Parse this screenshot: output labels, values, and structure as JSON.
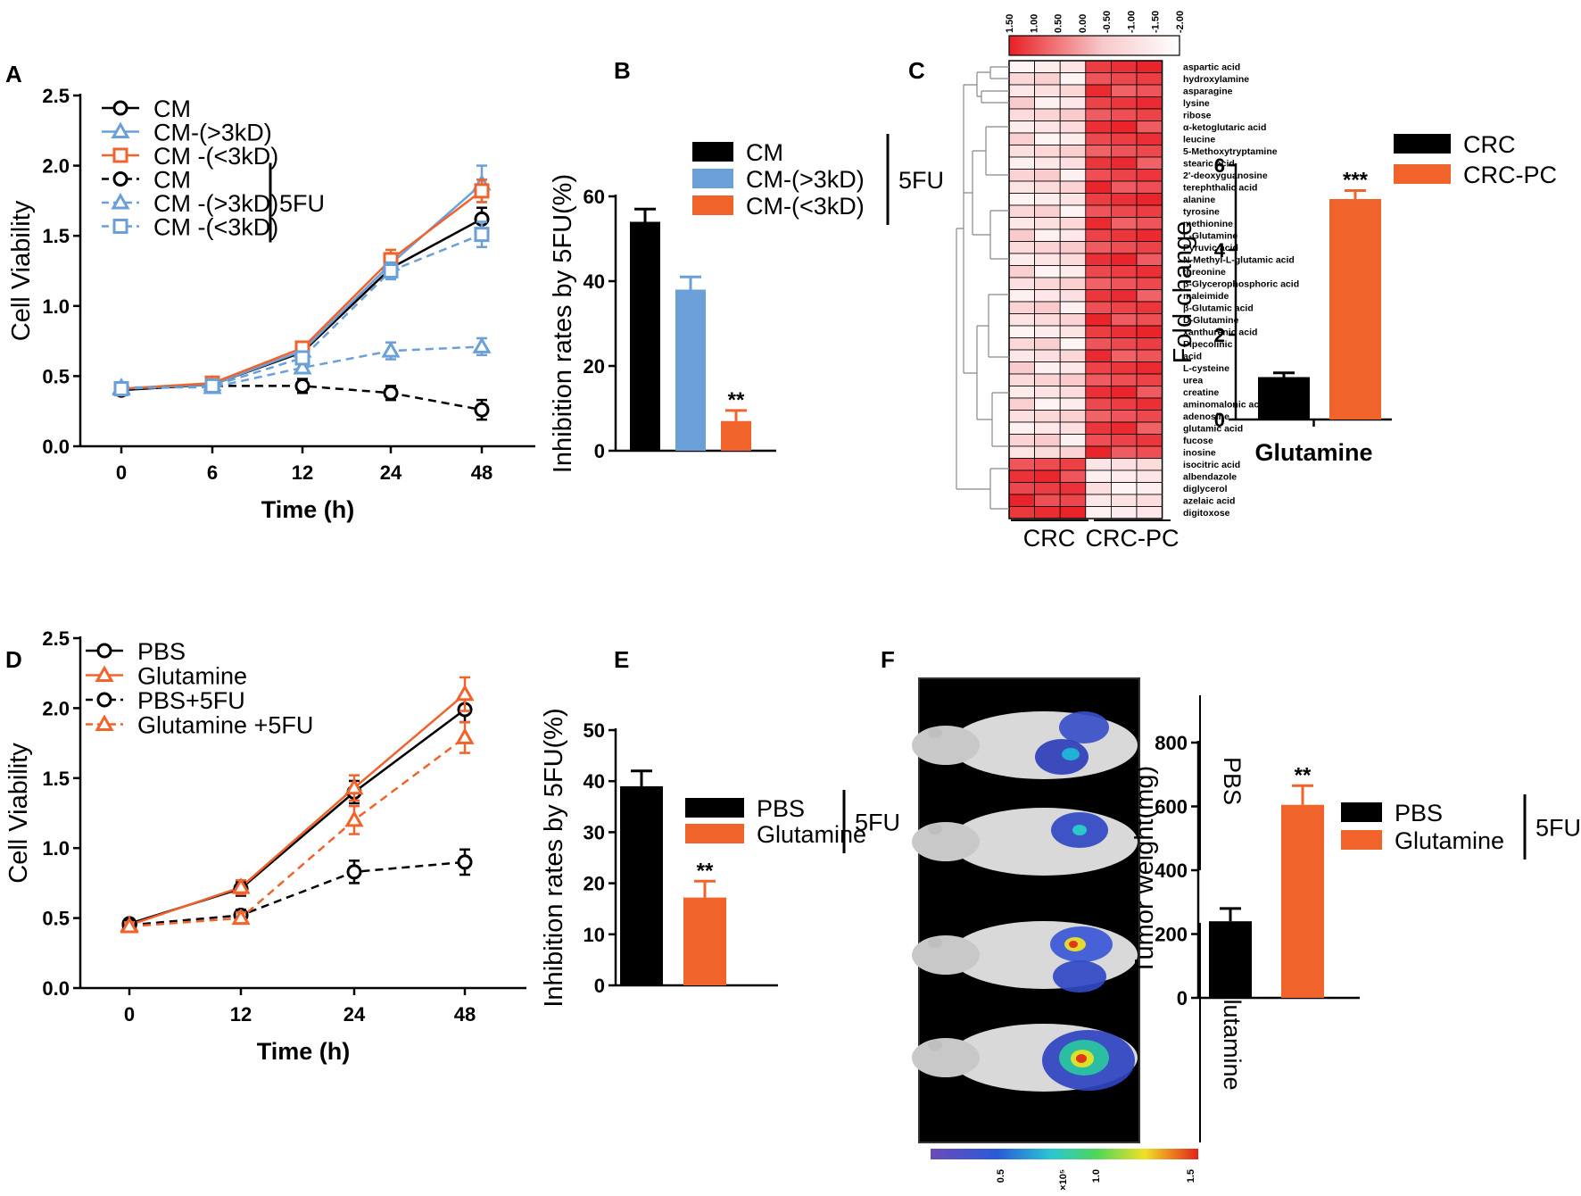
{
  "panels": {
    "A": "A",
    "B": "B",
    "C": "C",
    "D": "D",
    "E": "E",
    "F": "F"
  },
  "colors": {
    "black": "#000000",
    "blue": "#6a9fd8",
    "orange": "#f0632a"
  },
  "chart_data": [
    {
      "id": "A",
      "type": "line",
      "xlabel": "Time  (h)",
      "ylabel": "Cell Viability",
      "categories": [
        "0",
        "6",
        "12",
        "24",
        "48"
      ],
      "ylim": [
        0,
        2.5
      ],
      "yticks": [
        "0.0",
        "0.5",
        "1.0",
        "1.5",
        "2.0",
        "2.5"
      ],
      "group_label": "5FU",
      "series": [
        {
          "name": "CM",
          "color": "#000000",
          "marker": "circle",
          "dashed": false,
          "values": [
            0.4,
            0.44,
            0.67,
            1.27,
            1.62
          ],
          "err": [
            0.03,
            0.03,
            0.04,
            0.06,
            0.08
          ]
        },
        {
          "name": "CM-(>3kD)",
          "color": "#6a9fd8",
          "marker": "triangle",
          "dashed": false,
          "values": [
            0.41,
            0.44,
            0.68,
            1.3,
            1.87
          ],
          "err": [
            0.03,
            0.03,
            0.04,
            0.06,
            0.13
          ]
        },
        {
          "name": "CM -(<3kD)",
          "color": "#f0632a",
          "marker": "square",
          "dashed": false,
          "values": [
            0.41,
            0.45,
            0.7,
            1.33,
            1.82
          ],
          "err": [
            0.03,
            0.03,
            0.04,
            0.07,
            0.08
          ]
        },
        {
          "name": "CM",
          "color": "#000000",
          "marker": "circle",
          "dashed": true,
          "values": [
            0.41,
            0.43,
            0.43,
            0.38,
            0.26
          ],
          "err": [
            0.03,
            0.03,
            0.05,
            0.05,
            0.07
          ]
        },
        {
          "name": "CM -(>3kD)",
          "color": "#6a9fd8",
          "marker": "triangle",
          "dashed": true,
          "values": [
            0.42,
            0.42,
            0.56,
            0.68,
            0.71
          ],
          "err": [
            0.03,
            0.03,
            0.04,
            0.06,
            0.06
          ]
        },
        {
          "name": "CM -(<3kD)",
          "color": "#6a9fd8",
          "marker": "square",
          "dashed": true,
          "values": [
            0.41,
            0.43,
            0.63,
            1.25,
            1.51
          ],
          "err": [
            0.03,
            0.03,
            0.04,
            0.06,
            0.09
          ]
        }
      ]
    },
    {
      "id": "B",
      "type": "bar",
      "ylabel": "Inhibition rates by 5FU(%)",
      "ylim": [
        0,
        60
      ],
      "yticks": [
        "0",
        "20",
        "40",
        "60"
      ],
      "group_label": "5FU",
      "series": [
        {
          "name": "CM",
          "color": "#000000",
          "value": 54,
          "err": 3,
          "sig": ""
        },
        {
          "name": "CM-(>3kD)",
          "color": "#6a9fd8",
          "value": 38,
          "err": 3,
          "sig": ""
        },
        {
          "name": "CM-(<3kD)",
          "color": "#f0632a",
          "value": 7,
          "err": 2.5,
          "sig": "**"
        }
      ]
    },
    {
      "id": "C-heatmap",
      "type": "heatmap",
      "scale_ticks": [
        "1.50",
        "1.00",
        "0.50",
        "0.00",
        "-0.50",
        "-1.00",
        "-1.50",
        "-2.00"
      ],
      "groups": [
        "CRC",
        "CRC-PC"
      ],
      "rows": [
        "aspartic acid",
        "hydroxylamine",
        "asparagine",
        "lysine",
        "ribose",
        "α-ketoglutaric  acid",
        "leucine",
        "5-Methoxytryptamine",
        "stearic acid",
        "2'-deoxyguanosine",
        "terephthalic acid",
        "alanine",
        "tyrosine",
        "methionine",
        " L-Glutamine",
        "Pyruvic acid",
        "N-Methyl-L-glutamic acid",
        "threonine",
        "β-Glycerophosphoric acid",
        "maleimide",
        "β-Glutamic acid",
        "D-Glutamine",
        "xanthurenic acid",
        "Pipecolinic",
        "acid",
        "L-cysteine",
        "urea",
        "creatine",
        "aminomalonic acid",
        "adenosine",
        "glutamic acid",
        "fucose",
        "inosine",
        "isocitric acid",
        "albendazole",
        "diglycerol",
        "azelaic acid",
        "digitoxose"
      ]
    },
    {
      "id": "C-bar",
      "type": "bar",
      "ylabel": "Fold change",
      "xlabel": "Glutamine",
      "ylim": [
        0,
        6
      ],
      "yticks": [
        "0",
        "2",
        "4",
        "6"
      ],
      "series": [
        {
          "name": "CRC",
          "color": "#000000",
          "value": 1.0,
          "err": 0.1,
          "sig": ""
        },
        {
          "name": "CRC-PC",
          "color": "#f0632a",
          "value": 5.2,
          "err": 0.2,
          "sig": "***"
        }
      ]
    },
    {
      "id": "D",
      "type": "line",
      "xlabel": "Time  (h)",
      "ylabel": "Cell Viability",
      "categories": [
        "0",
        "12",
        "24",
        "48"
      ],
      "ylim": [
        0,
        2.5
      ],
      "yticks": [
        "0.0",
        "0.5",
        "1.0",
        "1.5",
        "2.0",
        "2.5"
      ],
      "series": [
        {
          "name": "PBS",
          "color": "#000000",
          "marker": "circle",
          "dashed": false,
          "values": [
            0.46,
            0.71,
            1.4,
            1.99
          ],
          "err": [
            0.03,
            0.05,
            0.08,
            0.09
          ]
        },
        {
          "name": "Glutamine",
          "color": "#f0632a",
          "marker": "triangle",
          "dashed": false,
          "values": [
            0.45,
            0.72,
            1.43,
            2.1
          ],
          "err": [
            0.03,
            0.05,
            0.09,
            0.12
          ]
        },
        {
          "name": "PBS+5FU",
          "color": "#000000",
          "marker": "circle",
          "dashed": true,
          "values": [
            0.45,
            0.52,
            0.83,
            0.9
          ],
          "err": [
            0.03,
            0.04,
            0.08,
            0.09
          ]
        },
        {
          "name": "Glutamine +5FU",
          "color": "#f0632a",
          "marker": "triangle",
          "dashed": true,
          "values": [
            0.44,
            0.5,
            1.2,
            1.79
          ],
          "err": [
            0.03,
            0.04,
            0.1,
            0.11
          ]
        }
      ]
    },
    {
      "id": "E",
      "type": "bar",
      "ylabel": "Inhibition rates by 5FU(%)",
      "ylim": [
        0,
        50
      ],
      "yticks": [
        "0",
        "10",
        "20",
        "30",
        "40",
        "50"
      ],
      "group_label": "5FU",
      "series": [
        {
          "name": "PBS",
          "color": "#000000",
          "value": 39,
          "err": 3,
          "sig": ""
        },
        {
          "name": "Glutamine",
          "color": "#f0632a",
          "value": 17.2,
          "err": 3.2,
          "sig": "**"
        }
      ]
    },
    {
      "id": "F-bar",
      "type": "bar",
      "ylabel": "Tumor weight(mg)",
      "ylim": [
        0,
        800
      ],
      "yticks": [
        "0",
        "200",
        "400",
        "600",
        "800"
      ],
      "group_label": "5FU",
      "series": [
        {
          "name": "PBS",
          "color": "#000000",
          "value": 240,
          "err": 40,
          "sig": ""
        },
        {
          "name": "Glutamine",
          "color": "#f0632a",
          "value": 605,
          "err": 60,
          "sig": "**"
        }
      ]
    }
  ],
  "imaging": {
    "group_labels": [
      "PBS",
      "Glutamine"
    ],
    "scale_ticks": [
      "0.5",
      "×10⁵",
      "1.0",
      "1.5"
    ]
  }
}
